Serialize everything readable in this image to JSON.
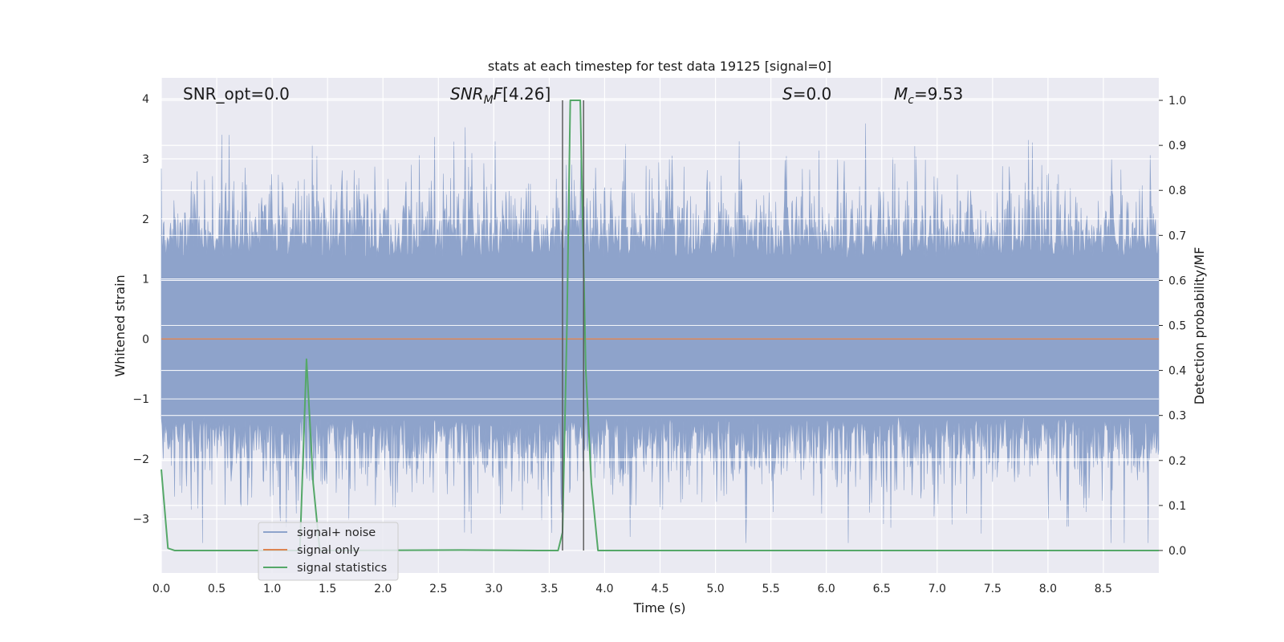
{
  "chart_data": {
    "type": "line",
    "title": "stats at each timestep for test data 19125 [signal=0]",
    "xlabel": "Time (s)",
    "ylabel": "Whitened strain",
    "y2label": "Detection probability/MF",
    "xlim": [
      0,
      9.0
    ],
    "ylim": [
      -3.9,
      4.35
    ],
    "y2lim": [
      -0.05,
      1.05
    ],
    "x_ticks": [
      "0.0",
      "0.5",
      "1.0",
      "1.5",
      "2.0",
      "2.5",
      "3.0",
      "3.5",
      "4.0",
      "4.5",
      "5.0",
      "5.5",
      "6.0",
      "6.5",
      "7.0",
      "7.5",
      "8.0",
      "8.5"
    ],
    "y_ticks": [
      "−3",
      "−2",
      "−1",
      "0",
      "1",
      "2",
      "3",
      "4"
    ],
    "y2_ticks": [
      "0.0",
      "0.1",
      "0.2",
      "0.3",
      "0.4",
      "0.5",
      "0.6",
      "0.7",
      "0.8",
      "0.9",
      "1.0"
    ],
    "grid": true,
    "legend_position": "lower-left",
    "annotations": {
      "snr_opt": "SNR_opt=0.0",
      "snr_mf": "[4.26]",
      "s": "=0.0",
      "mc": "=9.53"
    },
    "vertical_lines_x": [
      3.62,
      3.81
    ],
    "series": [
      {
        "name": "signal+ noise",
        "color": "#8ea3cb",
        "style": "filled noise band",
        "approx_range": [
          -3.4,
          4.0
        ]
      },
      {
        "name": "signal only",
        "color": "#dd8452",
        "x": [
          0,
          9.0
        ],
        "y": [
          0,
          0
        ]
      },
      {
        "name": "signal statistics",
        "color": "#55a868",
        "axis": "right",
        "x": [
          0,
          0.06,
          0.12,
          1.25,
          1.31,
          1.37,
          1.43,
          2.7,
          3.4,
          3.58,
          3.62,
          3.66,
          3.69,
          3.72,
          3.78,
          3.83,
          3.88,
          3.94,
          9.0
        ],
        "y": [
          0.18,
          0.005,
          0.0,
          0.0,
          0.425,
          0.15,
          0.0,
          0.001,
          0.0,
          0.0,
          0.04,
          0.5,
          1.0,
          1.0,
          1.0,
          0.4,
          0.15,
          0.0,
          0.0
        ]
      }
    ]
  }
}
